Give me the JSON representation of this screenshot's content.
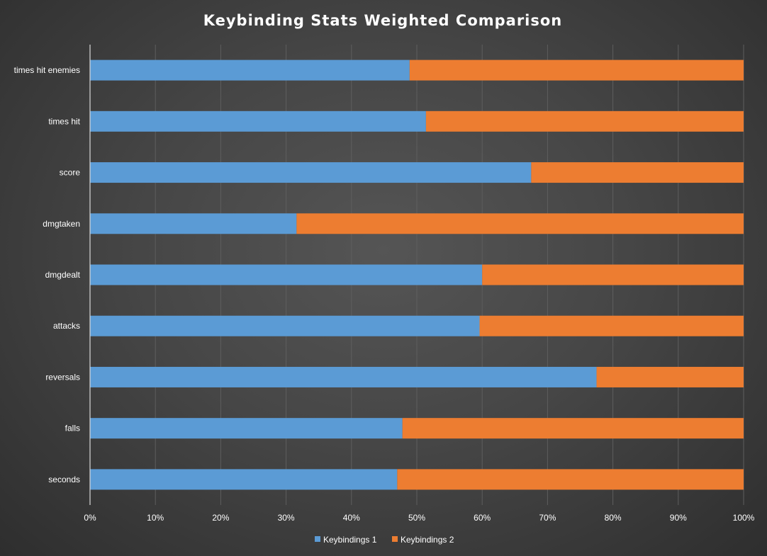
{
  "chart_data": {
    "type": "bar",
    "orientation": "horizontal",
    "stacked": "percent",
    "title": "Keybinding Stats Weighted Comparison",
    "categories": [
      "times hit enemies",
      "times hit",
      "score",
      "dmgtaken",
      "dmgdealt",
      "attacks",
      "reversals",
      "falls",
      "seconds"
    ],
    "series": [
      {
        "name": "Keybindings 1",
        "color": "#5b9bd5",
        "values": [
          48.9,
          51.4,
          67.5,
          31.6,
          60.0,
          59.6,
          77.5,
          47.8,
          47.0
        ]
      },
      {
        "name": "Keybindings 2",
        "color": "#ed7d31",
        "values": [
          51.1,
          48.6,
          32.5,
          68.4,
          40.0,
          40.4,
          22.5,
          52.2,
          53.0
        ]
      }
    ],
    "xlim": [
      0,
      100
    ],
    "x_ticks": [
      "0%",
      "10%",
      "20%",
      "30%",
      "40%",
      "50%",
      "60%",
      "70%",
      "80%",
      "90%",
      "100%"
    ],
    "grid": true,
    "legend_position": "bottom"
  }
}
